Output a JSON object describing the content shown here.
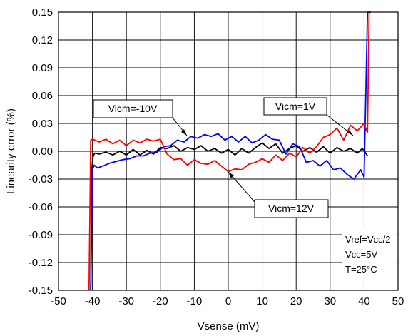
{
  "chart_data": {
    "type": "line",
    "title": "",
    "xlabel": "Vsense (mV)",
    "ylabel": "Linearity error (%)",
    "xlim": [
      -50,
      50
    ],
    "ylim": [
      -0.15,
      0.15
    ],
    "grid": true,
    "x_ticks": [
      -50,
      -40,
      -30,
      -20,
      -10,
      0,
      10,
      20,
      30,
      40,
      50
    ],
    "x_tick_labels": [
      "-50",
      "-40",
      "-30",
      "-20",
      "-10",
      "0",
      "10",
      "20",
      "30",
      "40",
      "50"
    ],
    "y_ticks": [
      -0.15,
      -0.12,
      -0.09,
      -0.06,
      -0.03,
      0,
      0.03,
      0.06,
      0.09,
      0.12,
      0.15
    ],
    "y_tick_labels": [
      "-0.15",
      "-0.12",
      "-0.09",
      "-0.06",
      "-0.03",
      "0.00",
      "0.03",
      "0.06",
      "0.09",
      "0.12",
      "0.15"
    ],
    "series": [
      {
        "label": "Vicm=-10V",
        "color": "#000000",
        "x": [
          -40.5,
          -40.2,
          -39.8,
          -39.3,
          -38,
          -36,
          -34,
          -32,
          -30,
          -28,
          -26,
          -24,
          -22,
          -20,
          -18,
          -16,
          -14,
          -12,
          -10,
          -8,
          -6,
          -4,
          -2,
          0,
          2,
          4,
          6,
          8,
          10,
          12,
          14,
          16,
          18,
          20,
          22,
          24,
          26,
          28,
          30,
          32,
          34,
          36,
          38,
          39.5,
          40.5,
          41
        ],
        "y": [
          -0.15,
          -0.02,
          -0.005,
          -0.002,
          -0.003,
          -0.001,
          -0.004,
          0,
          -0.004,
          0.002,
          -0.004,
          0.001,
          -0.003,
          0.004,
          0.003,
          0.006,
          0,
          0.004,
          0.002,
          0.006,
          0,
          0.003,
          -0.002,
          0.002,
          -0.004,
          0.003,
          -0.002,
          0.004,
          0.009,
          0.003,
          0.008,
          -0.002,
          0.003,
          0.006,
          0,
          0.004,
          -0.001,
          0.005,
          -0.002,
          0.004,
          0,
          0.003,
          -0.002,
          0.003,
          -0.002,
          -0.005
        ]
      },
      {
        "label": "Vicm=1V",
        "color": "#0000ff",
        "x": [
          -40.5,
          -40,
          -39.5,
          -38.5,
          -37,
          -35,
          -33,
          -31,
          -29,
          -27,
          -25,
          -23,
          -21,
          -19,
          -17,
          -15,
          -13,
          -11,
          -9,
          -7,
          -5,
          -3,
          -1,
          1,
          3,
          5,
          7,
          9,
          11,
          13,
          15,
          17,
          19,
          21,
          23,
          25,
          27,
          29,
          31,
          33,
          35,
          37,
          39,
          40,
          41,
          42
        ],
        "y": [
          -0.15,
          -0.02,
          -0.015,
          -0.018,
          -0.016,
          -0.013,
          -0.011,
          -0.009,
          -0.008,
          -0.005,
          -0.005,
          -0.002,
          -0.001,
          0.005,
          0.006,
          0.012,
          0.01,
          0.016,
          0.014,
          0.018,
          0.016,
          0.019,
          0.012,
          0.016,
          0.01,
          0.016,
          0.009,
          0.012,
          0.018,
          0.013,
          0.012,
          -0.003,
          0.008,
          0.005,
          -0.012,
          -0.01,
          -0.016,
          -0.01,
          -0.02,
          -0.018,
          -0.025,
          -0.03,
          -0.02,
          -0.028,
          0.15,
          0.15
        ]
      },
      {
        "label": "Vicm=12V",
        "color": "#ff0000",
        "x": [
          -41,
          -40.5,
          -40,
          -38,
          -36,
          -34,
          -32,
          -30,
          -28,
          -26,
          -24,
          -22,
          -20,
          -18,
          -16,
          -14,
          -12,
          -10,
          -8,
          -6,
          -4,
          -2,
          0,
          2,
          4,
          6,
          8,
          10,
          12,
          14,
          16,
          18,
          20,
          22,
          24,
          26,
          28,
          30,
          32,
          34,
          36,
          38,
          40,
          41,
          41.5
        ],
        "y": [
          -0.15,
          0.012,
          0.013,
          0.01,
          0.013,
          0.008,
          0.012,
          0.006,
          0.012,
          0.009,
          0.013,
          0.011,
          0.013,
          -0.003,
          -0.009,
          -0.008,
          -0.015,
          -0.009,
          -0.013,
          -0.014,
          -0.01,
          -0.016,
          -0.022,
          -0.019,
          -0.02,
          -0.014,
          -0.012,
          -0.008,
          -0.012,
          -0.004,
          -0.01,
          -0.002,
          -0.006,
          0.004,
          -0.002,
          0.005,
          0.015,
          0.018,
          0.025,
          0.012,
          0.028,
          0.022,
          0.03,
          0.02,
          0.15
        ]
      }
    ],
    "annotations": [
      {
        "name": "annotation-vicm-neg10",
        "text": "Vicm=-10V",
        "series": 0,
        "point": [
          -16.5,
          0.004
        ]
      },
      {
        "name": "annotation-vicm-1",
        "text": "Vicm=1V",
        "series": 1,
        "point": [
          38.5,
          0.003
        ]
      },
      {
        "name": "annotation-vicm-12",
        "text": "Vicm=12V",
        "series": 2,
        "point": [
          0.5,
          -0.021
        ]
      }
    ],
    "conditions": [
      "Vref=Vcc/2",
      "Vcc=5V",
      "T=25°C"
    ]
  }
}
